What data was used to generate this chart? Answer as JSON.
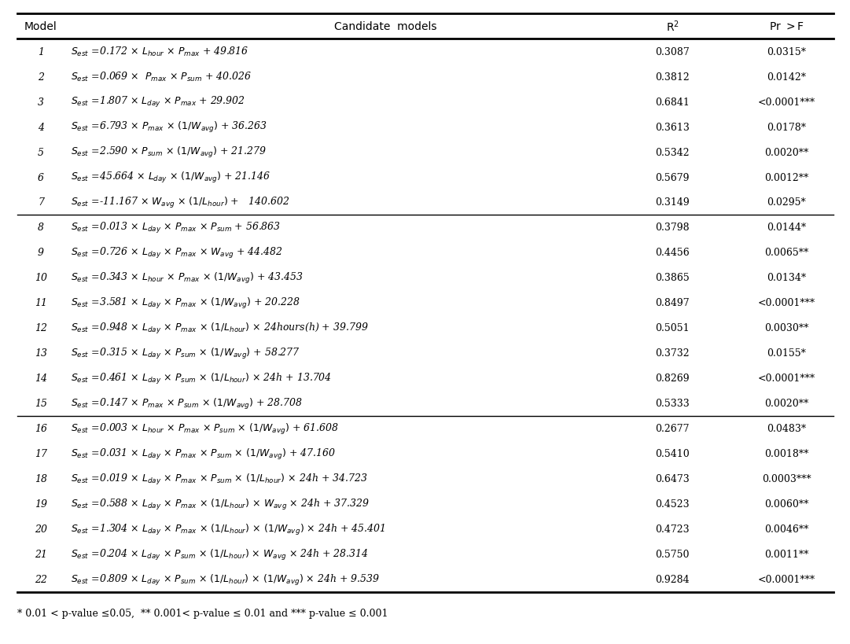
{
  "title_cols": [
    "Model",
    "Candidate models",
    "R²",
    "Pr >F"
  ],
  "rows": [
    {
      "model": "1",
      "eq_parts": [
        "$S_{est}$",
        " =0.172 × ",
        "$L_{hour}$",
        " × ",
        "$P_{max}$",
        " + 49.816"
      ],
      "r2": "0.3087",
      "prf": "0.0315*"
    },
    {
      "model": "2",
      "eq_parts": [
        "$S_{est}$",
        " =0.069 ×  ",
        "$P_{max}$",
        " × ",
        "$P_{sum}$",
        " + 40.026"
      ],
      "r2": "0.3812",
      "prf": "0.0142*"
    },
    {
      "model": "3",
      "eq_parts": [
        "$S_{est}$",
        " =1.807 × ",
        "$L_{day}$",
        " × ",
        "$P_{max}$",
        " + 29.902"
      ],
      "r2": "0.6841",
      "prf": "<0.0001***"
    },
    {
      "model": "4",
      "eq_parts": [
        "$S_{est}$",
        " =6.793 × ",
        "$P_{max}$",
        " × ",
        "$(1/W_{avg})$",
        " + 36.263"
      ],
      "r2": "0.3613",
      "prf": "0.0178*"
    },
    {
      "model": "5",
      "eq_parts": [
        "$S_{est}$",
        " =2.590 × ",
        "$P_{sum}$",
        " × ",
        "$(1/W_{avg})$",
        " + 21.279"
      ],
      "r2": "0.5342",
      "prf": "0.0020**"
    },
    {
      "model": "6",
      "eq_parts": [
        "$S_{est}$",
        " =45.664 × ",
        "$L_{day}$",
        " × ",
        "$(1/W_{avg})$",
        " + 21.146"
      ],
      "r2": "0.5679",
      "prf": "0.0012**"
    },
    {
      "model": "7",
      "eq_parts": [
        "$S_{est}$",
        " =-11.167 × ",
        "$W_{avg}$",
        "×",
        "$(1/L_{hour})$",
        " +   140.602"
      ],
      "r2": "0.3149",
      "prf": "0.0295*"
    },
    {
      "model": "8",
      "eq_parts": [
        "$S_{est}$",
        " =0.013 × ",
        "$L_{day}$",
        " × ",
        "$P_{max}$",
        " × ",
        "$P_{sum}$",
        " + 56.863"
      ],
      "r2": "0.3798",
      "prf": "0.0144*"
    },
    {
      "model": "9",
      "eq_parts": [
        "$S_{est}$",
        " =0.726 × ",
        "$L_{day}$",
        " × ",
        "$P_{max}$",
        " × ",
        "$W_{avg}$",
        " + 44.482"
      ],
      "r2": "0.4456",
      "prf": "0.0065**"
    },
    {
      "model": "10",
      "eq_parts": [
        "$S_{est}$",
        " =0.343 × ",
        "$L_{hour}$",
        " × ",
        "$P_{max}$",
        " × ",
        "$(1/W_{avg})$",
        " + 43.453"
      ],
      "r2": "0.3865",
      "prf": "0.0134*"
    },
    {
      "model": "11",
      "eq_parts": [
        "$S_{est}$",
        " =3.581 × ",
        "$L_{day}$",
        " × ",
        "$P_{max}$",
        " × ",
        "$(1/W_{avg})$",
        " + 20.228"
      ],
      "r2": "0.8497",
      "prf": "<0.0001***"
    },
    {
      "model": "12",
      "eq_parts": [
        "$S_{est}$",
        " =0.948 × ",
        "$L_{day}$",
        " × ",
        "$P_{max}$",
        " × ",
        "$(1/L_{hour})$",
        " × 24hours(h) + 39.799"
      ],
      "r2": "0.5051",
      "prf": "0.0030**"
    },
    {
      "model": "13",
      "eq_parts": [
        "$S_{est}$",
        " =0.315 × ",
        "$L_{day}$",
        " × ",
        "$P_{sum}$",
        " × ",
        "$(1/W_{avg})$",
        " + 58.277"
      ],
      "r2": "0.3732",
      "prf": "0.0155*"
    },
    {
      "model": "14",
      "eq_parts": [
        "$S_{est}$",
        " =0.461 × ",
        "$L_{day}$",
        " × ",
        "$P_{sum}$",
        " × ",
        "$(1/L_{hour})$",
        " × 24h + 13.704"
      ],
      "r2": "0.8269",
      "prf": "<0.0001***"
    },
    {
      "model": "15",
      "eq_parts": [
        "$S_{est}$",
        " =0.147 × ",
        "$P_{max}$",
        " × ",
        "$P_{sum}$",
        " × ",
        "$(1/W_{avg})$",
        " + 28.708"
      ],
      "r2": "0.5333",
      "prf": "0.0020**"
    },
    {
      "model": "16",
      "eq_parts": [
        "$S_{est}$",
        " =0.003 × ",
        "$L_{hour}$",
        " × ",
        "$P_{max}$",
        " × ",
        "$P_{sum}$",
        " × ",
        "$(1/W_{avg})$",
        " + 61.608"
      ],
      "r2": "0.2677",
      "prf": "0.0483*"
    },
    {
      "model": "17",
      "eq_parts": [
        "$S_{est}$",
        " =0.031 × ",
        "$L_{day}$",
        " × ",
        "$P_{max}$",
        " × ",
        "$P_{sum}$",
        " × ",
        "$(1/W_{avg})$",
        " + 47.160"
      ],
      "r2": "0.5410",
      "prf": "0.0018**"
    },
    {
      "model": "18",
      "eq_parts": [
        "$S_{est}$",
        " =0.019 × ",
        "$L_{day}$",
        " × ",
        "$P_{max}$",
        " × ",
        "$P_{sum}$",
        " × ",
        "$(1/L_{hour})$",
        " × 24h + 34.723"
      ],
      "r2": "0.6473",
      "prf": "0.0003***"
    },
    {
      "model": "19",
      "eq_parts": [
        "$S_{est}$",
        " =0.588 × ",
        "$L_{day}$",
        " × ",
        "$P_{max}$",
        " × ",
        "$(1/L_{hour})$",
        " × ",
        "$W_{avg}$",
        " × 24h + 37.329"
      ],
      "r2": "0.4523",
      "prf": "0.0060**"
    },
    {
      "model": "20",
      "eq_parts": [
        "$S_{est}$",
        " =1.304 × ",
        "$L_{day}$",
        " × ",
        "$P_{max}$",
        " × ",
        "$(1/L_{hour})$",
        " × ",
        "$(1/W_{avg})$",
        " × 24h + 45.401"
      ],
      "r2": "0.4723",
      "prf": "0.0046**"
    },
    {
      "model": "21",
      "eq_parts": [
        "$S_{est}$",
        " =0.204 × ",
        "$L_{day}$",
        " × ",
        "$P_{sum}$",
        " × ",
        "$(1/L_{hour})$",
        " × ",
        "$W_{avg}$",
        " × 24h + 28.314"
      ],
      "r2": "0.5750",
      "prf": "0.0011**"
    },
    {
      "model": "22",
      "eq_parts": [
        "$S_{est}$",
        " =0.809 × ",
        "$L_{day}$",
        " × ",
        "$P_{sum}$",
        " × ",
        "$(1/L_{hour})$",
        " × ",
        "$(1/W_{avg})$",
        " × 24h + 9.539"
      ],
      "r2": "0.9284",
      "prf": "<0.0001***"
    }
  ],
  "equations": [
    "$S_{est}$ =0.172 × $L_{hour}$ × $P_{max}$ + 49.816",
    "$S_{est}$ =0.069 ×  $P_{max}$ × $P_{sum}$ + 40.026",
    "$S_{est}$ =1.807 × $L_{day}$ × $P_{max}$ + 29.902",
    "$S_{est}$ =6.793 × $P_{max}$ × $(1/W_{avg})$ + 36.263",
    "$S_{est}$ =2.590 × $P_{sum}$ × $(1/W_{avg})$ + 21.279",
    "$S_{est}$ =45.664 × $L_{day}$ × $(1/W_{avg})$ + 21.146",
    "$S_{est}$ =-11.167 × $W_{avg}$ × $(1/L_{hour})$ +   140.602",
    "$S_{est}$ =0.013 × $L_{day}$ × $P_{max}$ × $P_{sum}$ + 56.863",
    "$S_{est}$ =0.726 × $L_{day}$ × $P_{max}$ × $W_{avg}$ + 44.482",
    "$S_{est}$ =0.343 × $L_{hour}$ × $P_{max}$ × $(1/W_{avg})$ + 43.453",
    "$S_{est}$ =3.581 × $L_{day}$ × $P_{max}$ × $(1/W_{avg})$ + 20.228",
    "$S_{est}$ =0.948 × $L_{day}$ × $P_{max}$ × $(1/L_{hour})$ × 24hours(h) + 39.799",
    "$S_{est}$ =0.315 × $L_{day}$ × $P_{sum}$ × $(1/W_{avg})$ + 58.277",
    "$S_{est}$ =0.461 × $L_{day}$ × $P_{sum}$ × $(1/L_{hour})$ × 24h + 13.704",
    "$S_{est}$ =0.147 × $P_{max}$ × $P_{sum}$ × $(1/W_{avg})$ + 28.708",
    "$S_{est}$ =0.003 × $L_{hour}$ × $P_{max}$ × $P_{sum}$ × $(1/W_{avg})$ + 61.608",
    "$S_{est}$ =0.031 × $L_{day}$ × $P_{max}$ × $P_{sum}$ × $(1/W_{avg})$ + 47.160",
    "$S_{est}$ =0.019 × $L_{day}$ × $P_{max}$ × $P_{sum}$ × $(1/L_{hour})$ × 24h + 34.723",
    "$S_{est}$ =0.588 × $L_{day}$ × $P_{max}$ × $(1/L_{hour})$ × $W_{avg}$ × 24h + 37.329",
    "$S_{est}$ =1.304 × $L_{day}$ × $P_{max}$ × $(1/L_{hour})$ × $(1/W_{avg})$ × 24h + 45.401",
    "$S_{est}$ =0.204 × $L_{day}$ × $P_{sum}$ × $(1/L_{hour})$ × $W_{avg}$ × 24h + 28.314",
    "$S_{est}$ =0.809 × $L_{day}$ × $P_{sum}$ × $(1/L_{hour})$ × $(1/W_{avg})$ × 24h + 9.539"
  ],
  "separator_after": [
    7,
    15
  ],
  "footnote": "* 0.01 < p-value ≤0.05,  ** 0.001< p-value ≤ 0.01 and *** p-value ≤ 0.001",
  "bg_color": "#ffffff",
  "text_color": "#000000",
  "thick_lw": 2.0,
  "thin_lw": 1.0,
  "font_size": 9.0,
  "header_font_size": 10.0
}
